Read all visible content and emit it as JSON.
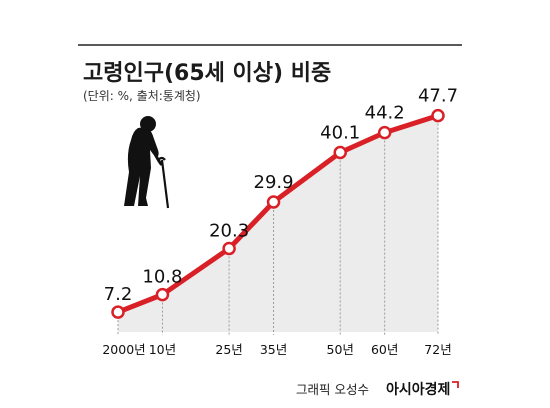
{
  "header": {
    "title": "고령인구(65세 이상) 비중",
    "subtitle": "(단위: %, 출처:통계청)"
  },
  "footer": {
    "credit": "그래픽 오성수",
    "brand": "아시아경제"
  },
  "colors": {
    "line": "#d92027",
    "area": "#ececec",
    "marker_fill": "#ffffff",
    "title_rule": "#222222",
    "brand_mark": "#d92027"
  },
  "icons": [
    "elderly-person-with-cane-icon"
  ],
  "chart_data": {
    "type": "line",
    "x": [
      2000,
      2010,
      2025,
      2035,
      2050,
      2060,
      2072
    ],
    "tick_labels": [
      "2000년",
      "10년",
      "25년",
      "35년",
      "50년",
      "60년",
      "72년"
    ],
    "values": [
      7.2,
      10.8,
      20.3,
      29.9,
      40.1,
      44.2,
      47.7
    ],
    "value_labels": [
      "7.2",
      "10.8",
      "20.3",
      "29.9",
      "40.1",
      "44.2",
      "47.7"
    ],
    "title": "고령인구(65세 이상) 비중",
    "xlabel": "",
    "ylabel": "",
    "unit": "%",
    "ylim": [
      0,
      50
    ],
    "grid": false,
    "area_fill": true,
    "markers": true
  }
}
